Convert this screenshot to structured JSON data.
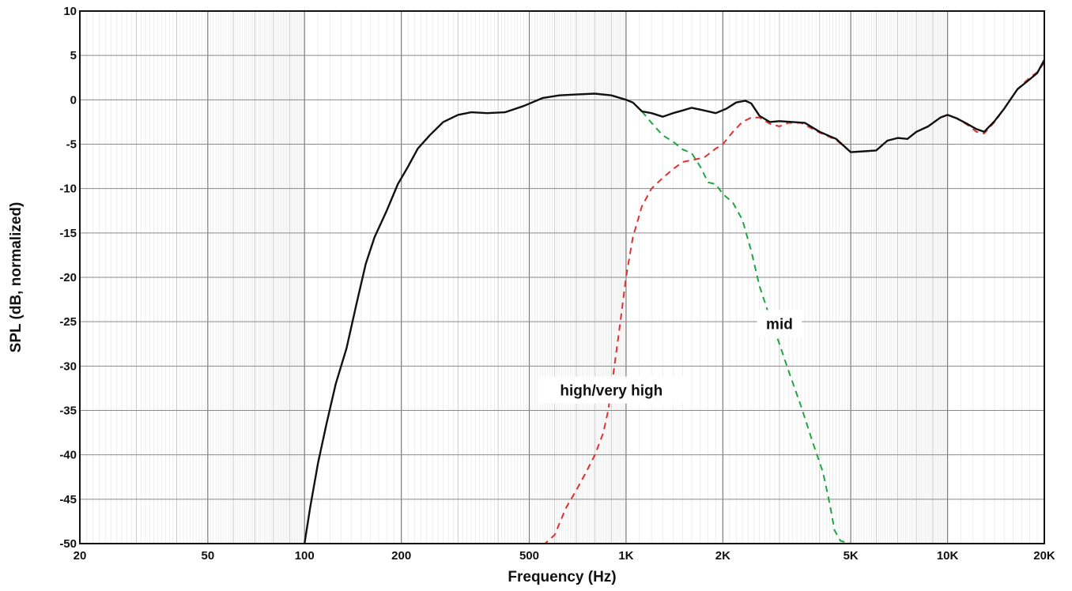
{
  "chart_data": {
    "type": "line",
    "title": "",
    "xlabel": "Frequency (Hz)",
    "ylabel": "SPL (dB, normalized)",
    "xscale": "log",
    "xlim": [
      20,
      20000
    ],
    "ylim": [
      -50,
      10
    ],
    "grid": true,
    "legend": "none",
    "x_ticks": [
      {
        "value": 20,
        "label": "20"
      },
      {
        "value": 50,
        "label": "50"
      },
      {
        "value": 100,
        "label": "100"
      },
      {
        "value": 200,
        "label": "200"
      },
      {
        "value": 500,
        "label": "500"
      },
      {
        "value": 1000,
        "label": "1K"
      },
      {
        "value": 2000,
        "label": "2K"
      },
      {
        "value": 5000,
        "label": "5K"
      },
      {
        "value": 10000,
        "label": "10K"
      },
      {
        "value": 20000,
        "label": "20K"
      }
    ],
    "y_ticks": [
      {
        "value": 10,
        "label": "10"
      },
      {
        "value": 5,
        "label": "5"
      },
      {
        "value": 0,
        "label": "0"
      },
      {
        "value": -5,
        "label": "-5"
      },
      {
        "value": -10,
        "label": "-10"
      },
      {
        "value": -15,
        "label": "-15"
      },
      {
        "value": -20,
        "label": "-20"
      },
      {
        "value": -25,
        "label": "-25"
      },
      {
        "value": -30,
        "label": "-30"
      },
      {
        "value": -35,
        "label": "-35"
      },
      {
        "value": -40,
        "label": "-40"
      },
      {
        "value": -45,
        "label": "-45"
      },
      {
        "value": -50,
        "label": "-50"
      }
    ],
    "series": [
      {
        "key": "system",
        "color": "#111111",
        "style": "solid",
        "points": [
          [
            100,
            -50
          ],
          [
            104,
            -46
          ],
          [
            110,
            -41
          ],
          [
            117,
            -36.5
          ],
          [
            125,
            -32
          ],
          [
            135,
            -28
          ],
          [
            145,
            -23
          ],
          [
            155,
            -18.5
          ],
          [
            165,
            -15.5
          ],
          [
            180,
            -12.5
          ],
          [
            195,
            -9.5
          ],
          [
            210,
            -7.5
          ],
          [
            225,
            -5.5
          ],
          [
            245,
            -4
          ],
          [
            270,
            -2.5
          ],
          [
            300,
            -1.7
          ],
          [
            330,
            -1.4
          ],
          [
            370,
            -1.5
          ],
          [
            420,
            -1.4
          ],
          [
            480,
            -0.7
          ],
          [
            550,
            0.2
          ],
          [
            620,
            0.5
          ],
          [
            700,
            0.6
          ],
          [
            800,
            0.7
          ],
          [
            900,
            0.5
          ],
          [
            1000,
            0
          ],
          [
            1050,
            -0.3
          ],
          [
            1120,
            -1.3
          ],
          [
            1200,
            -1.5
          ],
          [
            1300,
            -1.9
          ],
          [
            1400,
            -1.5
          ],
          [
            1500,
            -1.2
          ],
          [
            1600,
            -0.9
          ],
          [
            1750,
            -1.2
          ],
          [
            1900,
            -1.5
          ],
          [
            2050,
            -1
          ],
          [
            2200,
            -0.3
          ],
          [
            2350,
            -0.1
          ],
          [
            2450,
            -0.4
          ],
          [
            2600,
            -1.8
          ],
          [
            2800,
            -2.5
          ],
          [
            3000,
            -2.4
          ],
          [
            3300,
            -2.5
          ],
          [
            3600,
            -2.6
          ],
          [
            4000,
            -3.6
          ],
          [
            4500,
            -4.4
          ],
          [
            5000,
            -5.9
          ],
          [
            5500,
            -5.8
          ],
          [
            6000,
            -5.7
          ],
          [
            6500,
            -4.6
          ],
          [
            7000,
            -4.3
          ],
          [
            7500,
            -4.4
          ],
          [
            8000,
            -3.6
          ],
          [
            8700,
            -3
          ],
          [
            9500,
            -2
          ],
          [
            10000,
            -1.7
          ],
          [
            10700,
            -2.1
          ],
          [
            11500,
            -2.7
          ],
          [
            12300,
            -3.3
          ],
          [
            13000,
            -3.6
          ],
          [
            14000,
            -2.4
          ],
          [
            15000,
            -1
          ],
          [
            16500,
            1.2
          ],
          [
            18000,
            2.3
          ],
          [
            19000,
            3
          ],
          [
            20000,
            4.5
          ]
        ]
      },
      {
        "key": "high",
        "name": "high/very high",
        "color": "#e0312f",
        "style": "dashed",
        "points": [
          [
            400,
            -50
          ],
          [
            560,
            -50
          ],
          [
            600,
            -49
          ],
          [
            650,
            -46
          ],
          [
            700,
            -44
          ],
          [
            750,
            -42
          ],
          [
            800,
            -40
          ],
          [
            850,
            -37.5
          ],
          [
            880,
            -35
          ],
          [
            920,
            -30
          ],
          [
            960,
            -25
          ],
          [
            1000,
            -20
          ],
          [
            1050,
            -15.5
          ],
          [
            1120,
            -12
          ],
          [
            1200,
            -10
          ],
          [
            1300,
            -8.8
          ],
          [
            1400,
            -7.8
          ],
          [
            1500,
            -7
          ],
          [
            1600,
            -6.8
          ],
          [
            1750,
            -6.5
          ],
          [
            1900,
            -5.5
          ],
          [
            2000,
            -5
          ],
          [
            2150,
            -3.6
          ],
          [
            2300,
            -2.5
          ],
          [
            2450,
            -2
          ],
          [
            2600,
            -2
          ],
          [
            2800,
            -2.7
          ],
          [
            3000,
            -3
          ],
          [
            3200,
            -2.6
          ],
          [
            3500,
            -2.6
          ],
          [
            4000,
            -3.7
          ],
          [
            4500,
            -4.5
          ],
          [
            5000,
            -5.9
          ],
          [
            5500,
            -5.8
          ],
          [
            6000,
            -5.7
          ],
          [
            6500,
            -4.6
          ],
          [
            7000,
            -4.3
          ],
          [
            7500,
            -4.4
          ],
          [
            8000,
            -3.6
          ],
          [
            8700,
            -3
          ],
          [
            9500,
            -2
          ],
          [
            10000,
            -1.7
          ],
          [
            10700,
            -2.1
          ],
          [
            11500,
            -2.8
          ],
          [
            12300,
            -3.6
          ],
          [
            13000,
            -3.8
          ],
          [
            14000,
            -2.5
          ],
          [
            15000,
            -1
          ],
          [
            16500,
            1.2
          ],
          [
            18000,
            2.5
          ],
          [
            19000,
            3.1
          ],
          [
            20000,
            4.2
          ]
        ]
      },
      {
        "key": "mid",
        "name": "mid",
        "color": "#21a542",
        "style": "dashed",
        "points": [
          [
            1120,
            -1.3
          ],
          [
            1200,
            -2.6
          ],
          [
            1300,
            -4
          ],
          [
            1400,
            -4.7
          ],
          [
            1500,
            -5.6
          ],
          [
            1600,
            -6
          ],
          [
            1700,
            -7.5
          ],
          [
            1800,
            -9.3
          ],
          [
            1900,
            -9.5
          ],
          [
            2000,
            -10.6
          ],
          [
            2150,
            -11.6
          ],
          [
            2300,
            -13.5
          ],
          [
            2450,
            -17
          ],
          [
            2600,
            -21
          ],
          [
            2800,
            -24.5
          ],
          [
            3000,
            -27.5
          ],
          [
            3200,
            -30.5
          ],
          [
            3500,
            -34.5
          ],
          [
            3800,
            -38.5
          ],
          [
            4100,
            -42
          ],
          [
            4300,
            -45.5
          ],
          [
            4450,
            -48.5
          ],
          [
            4650,
            -49.7
          ],
          [
            5000,
            -50
          ],
          [
            20000,
            -50
          ]
        ]
      }
    ],
    "annotations": [
      {
        "key": "mid",
        "text": "mid",
        "x": 3000,
        "y": -25.2
      },
      {
        "key": "high",
        "text": "high/very high",
        "x": 900,
        "y": -32.7
      }
    ]
  }
}
